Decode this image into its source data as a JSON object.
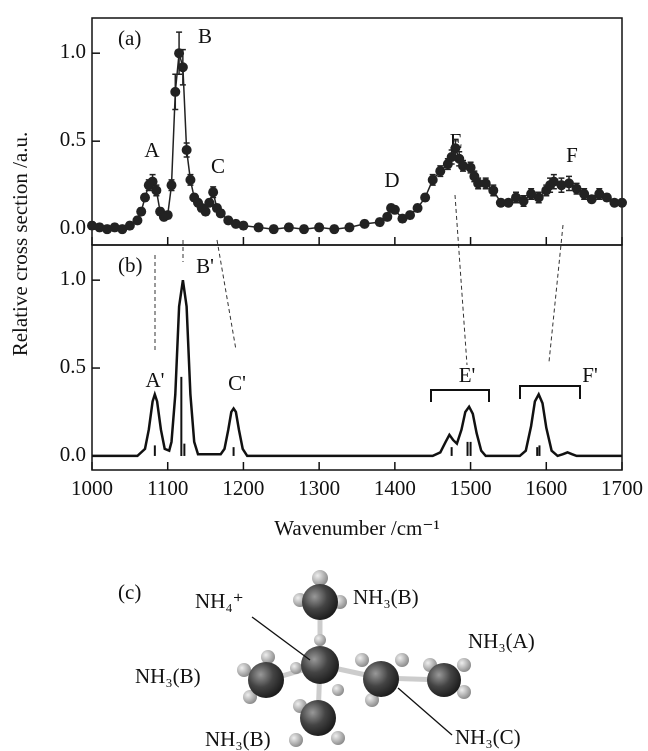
{
  "chart_data": [
    {
      "type": "scatter",
      "panel_label": "(a)",
      "y_label": "Relative cross section /a.u.",
      "annotations": [
        "A",
        "B",
        "C",
        "D",
        "E",
        "F"
      ],
      "xlim": [
        1000,
        1700
      ],
      "ylim": [
        -0.09,
        1.2
      ],
      "yticks": [
        {
          "value": 0,
          "label": "0.0"
        },
        {
          "value": 0.5,
          "label": "0.5"
        },
        {
          "value": 1,
          "label": "1.0"
        }
      ],
      "x": [
        1000,
        1010,
        1020,
        1030,
        1040,
        1050,
        1060,
        1065,
        1070,
        1075,
        1080,
        1085,
        1090,
        1095,
        1100,
        1105,
        1110,
        1115,
        1120,
        1125,
        1130,
        1135,
        1140,
        1145,
        1150,
        1155,
        1160,
        1165,
        1170,
        1180,
        1190,
        1200,
        1220,
        1240,
        1260,
        1280,
        1300,
        1320,
        1340,
        1360,
        1380,
        1390,
        1395,
        1400,
        1410,
        1420,
        1430,
        1440,
        1450,
        1460,
        1470,
        1475,
        1480,
        1485,
        1490,
        1500,
        1505,
        1510,
        1520,
        1530,
        1540,
        1550,
        1560,
        1570,
        1580,
        1590,
        1600,
        1605,
        1610,
        1620,
        1630,
        1640,
        1650,
        1660,
        1670,
        1680,
        1690,
        1700
      ],
      "series": [
        {
          "color": "#222222",
          "values": [
            0.02,
            0.01,
            0.0,
            0.01,
            0.0,
            0.02,
            0.05,
            0.1,
            0.18,
            0.25,
            0.27,
            0.22,
            0.1,
            0.07,
            0.08,
            0.25,
            0.78,
            1.0,
            0.92,
            0.45,
            0.28,
            0.18,
            0.15,
            0.12,
            0.1,
            0.15,
            0.21,
            0.12,
            0.09,
            0.05,
            0.03,
            0.02,
            0.01,
            0.0,
            0.01,
            0.0,
            0.01,
            0.0,
            0.01,
            0.03,
            0.04,
            0.07,
            0.12,
            0.11,
            0.06,
            0.08,
            0.12,
            0.18,
            0.28,
            0.33,
            0.37,
            0.41,
            0.46,
            0.4,
            0.36,
            0.35,
            0.3,
            0.26,
            0.26,
            0.22,
            0.15,
            0.15,
            0.18,
            0.16,
            0.2,
            0.18,
            0.22,
            0.25,
            0.27,
            0.25,
            0.26,
            0.23,
            0.2,
            0.17,
            0.2,
            0.18,
            0.15,
            0.15
          ],
          "errors": [
            0.02,
            0.02,
            0.02,
            0.02,
            0.02,
            0.02,
            0.02,
            0.02,
            0.02,
            0.03,
            0.04,
            0.03,
            0.02,
            0.02,
            0.02,
            0.03,
            0.1,
            0.12,
            0.1,
            0.04,
            0.03,
            0.02,
            0.02,
            0.02,
            0.02,
            0.02,
            0.03,
            0.02,
            0.02,
            0.02,
            0.02,
            0.02,
            0.02,
            0.02,
            0.02,
            0.02,
            0.02,
            0.02,
            0.02,
            0.02,
            0.02,
            0.02,
            0.02,
            0.02,
            0.02,
            0.02,
            0.02,
            0.02,
            0.03,
            0.03,
            0.03,
            0.04,
            0.05,
            0.04,
            0.03,
            0.03,
            0.03,
            0.03,
            0.03,
            0.03,
            0.02,
            0.02,
            0.03,
            0.03,
            0.03,
            0.03,
            0.03,
            0.04,
            0.04,
            0.04,
            0.04,
            0.03,
            0.03,
            0.02,
            0.03,
            0.02,
            0.02,
            0.02
          ]
        }
      ]
    },
    {
      "type": "line",
      "panel_label": "(b)",
      "x_label": "Wavenumber /cm⁻¹",
      "annotations": [
        "A'",
        "B'",
        "C'",
        "E'",
        "F'"
      ],
      "xlim": [
        1000,
        1700
      ],
      "ylim": [
        -0.08,
        1.2
      ],
      "xticks": [
        1000,
        1100,
        1200,
        1300,
        1400,
        1500,
        1600,
        1700
      ],
      "yticks": [
        {
          "value": 0,
          "label": "0.0"
        },
        {
          "value": 0.5,
          "label": "0.5"
        },
        {
          "value": 1,
          "label": "1.0"
        }
      ],
      "x": [
        1000,
        1060,
        1070,
        1075,
        1080,
        1083,
        1086,
        1091,
        1096,
        1102,
        1105,
        1110,
        1115,
        1120,
        1125,
        1130,
        1135,
        1140,
        1170,
        1175,
        1180,
        1184,
        1187,
        1190,
        1194,
        1199,
        1205,
        1450,
        1460,
        1467,
        1472,
        1477,
        1482,
        1488,
        1493,
        1498,
        1503,
        1508,
        1514,
        1520,
        1565,
        1573,
        1580,
        1585,
        1590,
        1595,
        1600,
        1607,
        1615,
        1622,
        1628,
        1634,
        1640,
        1700
      ],
      "series": [
        {
          "color": "#111111",
          "values": [
            0,
            0,
            0.04,
            0.15,
            0.31,
            0.35,
            0.31,
            0.15,
            0.04,
            0.03,
            0.08,
            0.35,
            0.85,
            1.0,
            0.85,
            0.35,
            0.08,
            0.01,
            0.01,
            0.04,
            0.15,
            0.25,
            0.27,
            0.25,
            0.15,
            0.04,
            0.0,
            0,
            0.02,
            0.08,
            0.12,
            0.09,
            0.07,
            0.15,
            0.25,
            0.28,
            0.24,
            0.13,
            0.03,
            0.0,
            0,
            0.03,
            0.17,
            0.31,
            0.35,
            0.3,
            0.16,
            0.03,
            0.0,
            0.01,
            0.02,
            0.01,
            0,
            0
          ]
        }
      ],
      "sticks": {
        "x": [
          1083,
          1118,
          1122,
          1187,
          1475,
          1496,
          1500,
          1588,
          1591
        ],
        "values": [
          0.06,
          0.45,
          0.07,
          0.05,
          0.05,
          0.08,
          0.08,
          0.05,
          0.06
        ]
      }
    }
  ],
  "diagram": {
    "panel_label": "(c)",
    "labels": [
      "NH₄⁺",
      "NH₃(B)",
      "NH₃(A)",
      "NH₃(B)",
      "NH₃(B)",
      "NH₃(C)"
    ]
  }
}
